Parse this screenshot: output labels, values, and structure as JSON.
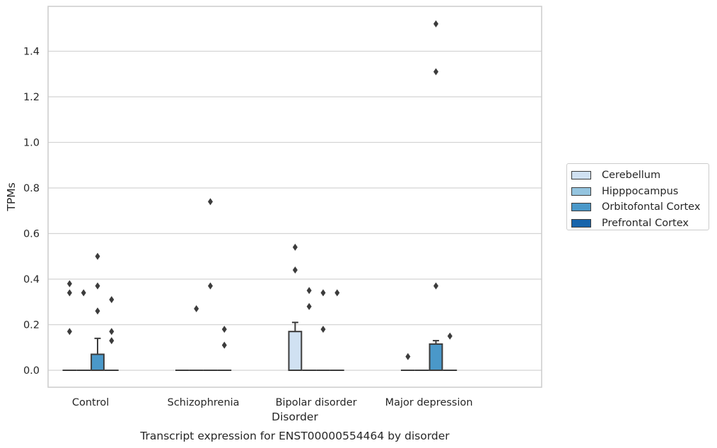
{
  "chart_data": {
    "type": "box",
    "title": "Transcript expression for ENST00000554464 by disorder",
    "xlabel": "Disorder",
    "ylabel": "TPMs",
    "ylim": [
      -0.075,
      1.6
    ],
    "yticks": [
      0.0,
      0.2,
      0.4,
      0.6,
      0.8,
      1.0,
      1.2,
      1.4
    ],
    "ytick_labels": [
      "0.0",
      "0.2",
      "0.4",
      "0.6",
      "0.8",
      "1.0",
      "1.2",
      "1.4"
    ],
    "grid": "horizontal",
    "legend_position": "right",
    "categories": [
      "Control",
      "Schizophrenia",
      "Bipolar disorder",
      "Major depression"
    ],
    "series": [
      {
        "name": "Cerebellum",
        "color": "#d0e1f2",
        "boxes": [
          {
            "category": "Control",
            "q1": 0.0,
            "median": 0.0,
            "q3": 0.0,
            "whisker_low": 0.0,
            "whisker_high": 0.0,
            "outliers": [
              0.17,
              0.34,
              0.38
            ]
          },
          {
            "category": "Schizophrenia",
            "q1": 0.0,
            "median": 0.0,
            "q3": 0.0,
            "whisker_low": 0.0,
            "whisker_high": 0.0,
            "outliers": []
          },
          {
            "category": "Bipolar disorder",
            "q1": 0.0,
            "median": 0.0,
            "q3": 0.17,
            "whisker_low": 0.0,
            "whisker_high": 0.21,
            "outliers": [
              0.44,
              0.54
            ]
          },
          {
            "category": "Major depression",
            "q1": 0.0,
            "median": 0.0,
            "q3": 0.0,
            "whisker_low": 0.0,
            "whisker_high": 0.0,
            "outliers": [
              0.06
            ]
          }
        ]
      },
      {
        "name": "Hipppocampus",
        "color": "#94c4df",
        "boxes": [
          {
            "category": "Control",
            "q1": 0.0,
            "median": 0.0,
            "q3": 0.0,
            "whisker_low": 0.0,
            "whisker_high": 0.0,
            "outliers": [
              0.34
            ]
          },
          {
            "category": "Schizophrenia",
            "q1": 0.0,
            "median": 0.0,
            "q3": 0.0,
            "whisker_low": 0.0,
            "whisker_high": 0.0,
            "outliers": [
              0.27
            ]
          },
          {
            "category": "Bipolar disorder",
            "q1": 0.0,
            "median": 0.0,
            "q3": 0.0,
            "whisker_low": 0.0,
            "whisker_high": 0.0,
            "outliers": [
              0.28,
              0.35
            ]
          },
          {
            "category": "Major depression",
            "q1": 0.0,
            "median": 0.0,
            "q3": 0.0,
            "whisker_low": 0.0,
            "whisker_high": 0.0,
            "outliers": []
          }
        ]
      },
      {
        "name": "Orbitofontal Cortex",
        "color": "#4a98c9",
        "boxes": [
          {
            "category": "Control",
            "q1": 0.0,
            "median": 0.0,
            "q3": 0.07,
            "whisker_low": 0.0,
            "whisker_high": 0.14,
            "outliers": [
              0.26,
              0.37,
              0.5
            ]
          },
          {
            "category": "Schizophrenia",
            "q1": 0.0,
            "median": 0.0,
            "q3": 0.0,
            "whisker_low": 0.0,
            "whisker_high": 0.0,
            "outliers": [
              0.37,
              0.74
            ]
          },
          {
            "category": "Bipolar disorder",
            "q1": 0.0,
            "median": 0.0,
            "q3": 0.0,
            "whisker_low": 0.0,
            "whisker_high": 0.0,
            "outliers": [
              0.18,
              0.34
            ]
          },
          {
            "category": "Major depression",
            "q1": 0.0,
            "median": 0.0,
            "q3": 0.115,
            "whisker_low": 0.0,
            "whisker_high": 0.13,
            "outliers": [
              0.37,
              1.31,
              1.52
            ]
          }
        ]
      },
      {
        "name": "Prefrontal Cortex",
        "color": "#1764ab",
        "boxes": [
          {
            "category": "Control",
            "q1": 0.0,
            "median": 0.0,
            "q3": 0.0,
            "whisker_low": 0.0,
            "whisker_high": 0.0,
            "outliers": [
              0.13,
              0.17,
              0.31
            ]
          },
          {
            "category": "Schizophrenia",
            "q1": 0.0,
            "median": 0.0,
            "q3": 0.0,
            "whisker_low": 0.0,
            "whisker_high": 0.0,
            "outliers": [
              0.11,
              0.18
            ]
          },
          {
            "category": "Bipolar disorder",
            "q1": 0.0,
            "median": 0.0,
            "q3": 0.0,
            "whisker_low": 0.0,
            "whisker_high": 0.0,
            "outliers": [
              0.34
            ]
          },
          {
            "category": "Major depression",
            "q1": 0.0,
            "median": 0.0,
            "q3": 0.0,
            "whisker_low": 0.0,
            "whisker_high": 0.0,
            "outliers": [
              0.15
            ]
          }
        ]
      }
    ]
  }
}
